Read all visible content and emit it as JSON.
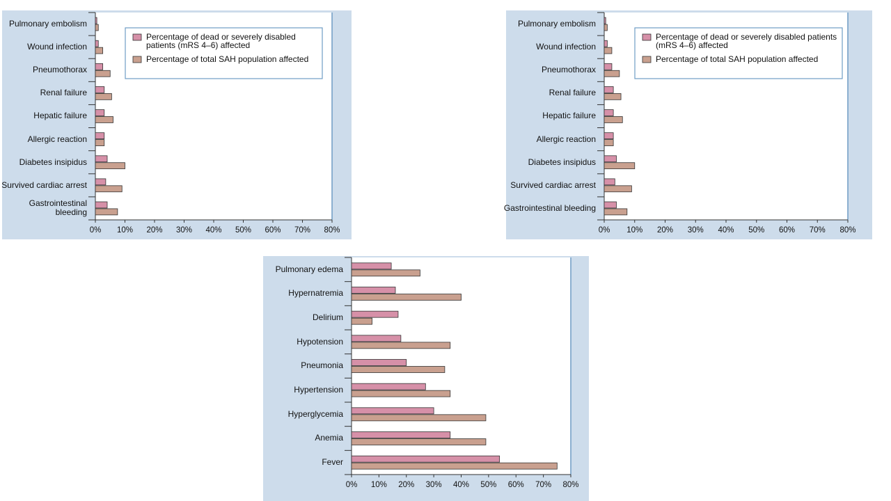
{
  "chart_data": [
    {
      "type": "barh",
      "categories": [
        "Pulmonary embolism",
        "Wound infection",
        "Pneumothorax",
        "Renal failure",
        "Hepatic failure",
        "Allergic reaction",
        "Diabetes insipidus",
        "Survived cardiac arrest",
        "Gastrointestinal bleeding"
      ],
      "series": [
        {
          "name": "Percentage of dead or severely disabled patients (mRS 4–6) affected",
          "color": "#d690a8",
          "values": [
            0.5,
            1,
            2.5,
            3,
            3,
            3,
            4,
            3.5,
            4
          ]
        },
        {
          "name": "Percentage of total SAH population affected",
          "color": "#c9a08f",
          "values": [
            1,
            2.5,
            5,
            5.5,
            6,
            3,
            10,
            9,
            7.5
          ]
        }
      ],
      "xlim": [
        0,
        80
      ],
      "xticks": [
        {
          "value": 0,
          "label": "0%"
        },
        {
          "value": 10,
          "label": "10%"
        },
        {
          "value": 20,
          "label": "20%"
        },
        {
          "value": 30,
          "label": "30%"
        },
        {
          "value": 40,
          "label": "40%"
        },
        {
          "value": 50,
          "label": "50%"
        },
        {
          "value": 60,
          "label": "60%"
        },
        {
          "value": 70,
          "label": "70%"
        },
        {
          "value": 80,
          "label": "80%"
        }
      ],
      "legend": "upper right"
    },
    {
      "type": "barh",
      "categories": [
        "Pulmonary embolism",
        "Wound infection",
        "Pneumothorax",
        "Renal failure",
        "Hepatic failure",
        "Allergic reaction",
        "Diabetes insipidus",
        "Survived cardiac arrest",
        "Gastrointestinal bleeding"
      ],
      "series": [
        {
          "name": "Percentage of dead or severely disabled patients (mRS 4–6) affected",
          "color": "#d690a8",
          "values": [
            0.5,
            1,
            2.5,
            3,
            3,
            3,
            4,
            3.5,
            4
          ]
        },
        {
          "name": "Percentage of total SAH population affected",
          "color": "#c9a08f",
          "values": [
            1,
            2.5,
            5,
            5.5,
            6,
            3,
            10,
            9,
            7.5
          ]
        }
      ],
      "xlim": [
        0,
        80
      ],
      "xticks": [
        {
          "value": 0,
          "label": "0%"
        },
        {
          "value": 10,
          "label": "10%"
        },
        {
          "value": 20,
          "label": "20%"
        },
        {
          "value": 30,
          "label": "30%"
        },
        {
          "value": 40,
          "label": "40%"
        },
        {
          "value": 50,
          "label": "50%"
        },
        {
          "value": 60,
          "label": "60%"
        },
        {
          "value": 70,
          "label": "70%"
        },
        {
          "value": 80,
          "label": "80%"
        }
      ],
      "legend": "upper right"
    },
    {
      "type": "barh",
      "categories": [
        "Pulmonary edema",
        "Hypernatremia",
        "Delirium",
        "Hypotension",
        "Pneumonia",
        "Hypertension",
        "Hyperglycemia",
        "Anemia",
        "Fever"
      ],
      "series": [
        {
          "color": "#d690a8",
          "values": [
            14.5,
            16,
            17,
            18,
            20,
            27,
            30,
            36,
            54
          ]
        },
        {
          "color": "#c9a08f",
          "values": [
            25,
            40,
            7.5,
            36,
            34,
            36,
            49,
            49,
            75
          ]
        }
      ],
      "xlim": [
        0,
        80
      ],
      "xticks": [
        {
          "value": 0,
          "label": "0%"
        },
        {
          "value": 10,
          "label": "10%"
        },
        {
          "value": 20,
          "label": "20%"
        },
        {
          "value": 30,
          "label": "30%"
        },
        {
          "value": 40,
          "label": "40%"
        },
        {
          "value": 50,
          "label": "50%"
        },
        {
          "value": 60,
          "label": "60%"
        },
        {
          "value": 70,
          "label": "70%"
        },
        {
          "value": 80,
          "label": "80%"
        }
      ]
    }
  ]
}
